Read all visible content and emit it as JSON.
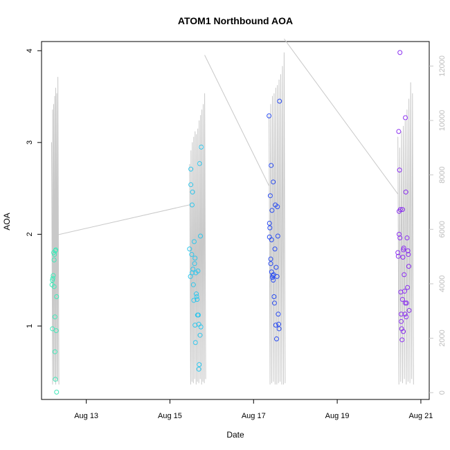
{
  "chart_data": {
    "type": "scatter",
    "title": "ATOM1 Northbound AOA",
    "xlabel": "Date",
    "ylabel": "AOA",
    "x_ticks": [
      "Aug 13",
      "Aug 15",
      "Aug 17",
      "Aug 19",
      "Aug 21"
    ],
    "x_tick_values": [
      13,
      15,
      17,
      19,
      21
    ],
    "xlim": [
      11.93,
      21.2
    ],
    "y_ticks": [
      "1",
      "2",
      "3",
      "4"
    ],
    "y_tick_values": [
      1,
      2,
      3,
      4
    ],
    "ylim": [
      0.2,
      4.1
    ],
    "y2_ticks": [
      "0",
      "2000",
      "4000",
      "6000",
      "8000",
      "10000",
      "12000"
    ],
    "y2_tick_values": [
      0,
      2000,
      4000,
      6000,
      8000,
      10000,
      12000
    ],
    "y2lim": [
      -250,
      12900
    ],
    "y2_color": "#c8c8c8",
    "line_color": "#c8c8c8",
    "point_colors": [
      "#3fe8b8",
      "#2ec6ec",
      "#2a4cf0",
      "#8a2ef0"
    ],
    "bursts": [
      {
        "day_start": 12.17,
        "day_end": 12.32,
        "color": "#3fe8b8",
        "points": [
          [
            12.18,
            1.45
          ],
          [
            12.19,
            1.5
          ],
          [
            12.2,
            1.52
          ],
          [
            12.19,
            0.97
          ],
          [
            12.21,
            1.55
          ],
          [
            12.22,
            1.8
          ],
          [
            12.23,
            1.43
          ],
          [
            12.23,
            1.72
          ],
          [
            12.24,
            1.78
          ],
          [
            12.25,
            1.1
          ],
          [
            12.25,
            0.72
          ],
          [
            12.26,
            1.82
          ],
          [
            12.26,
            0.42
          ],
          [
            12.27,
            1.83
          ],
          [
            12.28,
            0.95
          ],
          [
            12.29,
            1.32
          ],
          [
            12.29,
            0.28
          ]
        ],
        "line_peaks": [
          9200,
          10400,
          10600,
          10900,
          11200,
          11000,
          11600
        ],
        "line_mins": [
          300,
          500,
          400
        ]
      },
      {
        "day_start": 15.47,
        "day_end": 15.83,
        "color": "#2ec6ec",
        "points": [
          [
            15.47,
            1.84
          ],
          [
            15.49,
            1.54
          ],
          [
            15.5,
            2.71
          ],
          [
            15.5,
            2.54
          ],
          [
            15.52,
            1.78
          ],
          [
            15.53,
            1.58
          ],
          [
            15.53,
            2.32
          ],
          [
            15.54,
            2.46
          ],
          [
            15.55,
            1.62
          ],
          [
            15.56,
            1.45
          ],
          [
            15.57,
            1.28
          ],
          [
            15.58,
            1.92
          ],
          [
            15.59,
            1.68
          ],
          [
            15.6,
            1.74
          ],
          [
            15.6,
            1.01
          ],
          [
            15.61,
            0.82
          ],
          [
            15.62,
            1.58
          ],
          [
            15.63,
            1.35
          ],
          [
            15.64,
            1.32
          ],
          [
            15.65,
            1.29
          ],
          [
            15.66,
            1.12
          ],
          [
            15.67,
            1.6
          ],
          [
            15.68,
            1.12
          ],
          [
            15.69,
            1.02
          ],
          [
            15.69,
            0.53
          ],
          [
            15.7,
            0.58
          ],
          [
            15.71,
            2.77
          ],
          [
            15.72,
            0.9
          ],
          [
            15.73,
            1.98
          ],
          [
            15.74,
            0.99
          ],
          [
            15.75,
            2.95
          ]
        ],
        "line_peaks": [
          8400,
          8900,
          9200,
          9400,
          9600,
          9500,
          9700,
          10000,
          10200,
          10400,
          10600,
          11000
        ],
        "line_mins": [
          300,
          400,
          350,
          500
        ]
      },
      {
        "day_start": 17.37,
        "day_end": 17.73,
        "color": "#2a4cf0",
        "points": [
          [
            17.37,
            3.29
          ],
          [
            17.38,
            2.12
          ],
          [
            17.38,
            1.97
          ],
          [
            17.39,
            2.07
          ],
          [
            17.4,
            2.42
          ],
          [
            17.41,
            1.73
          ],
          [
            17.41,
            1.68
          ],
          [
            17.42,
            2.75
          ],
          [
            17.43,
            1.59
          ],
          [
            17.43,
            1.94
          ],
          [
            17.44,
            2.26
          ],
          [
            17.45,
            1.53
          ],
          [
            17.46,
            1.55
          ],
          [
            17.47,
            2.57
          ],
          [
            17.47,
            1.5
          ],
          [
            17.48,
            1.56
          ],
          [
            17.49,
            1.32
          ],
          [
            17.5,
            1.25
          ],
          [
            17.51,
            1.84
          ],
          [
            17.52,
            2.32
          ],
          [
            17.53,
            1.01
          ],
          [
            17.54,
            1.64
          ],
          [
            17.55,
            0.86
          ],
          [
            17.56,
            1.54
          ],
          [
            17.57,
            2.3
          ],
          [
            17.58,
            1.98
          ],
          [
            17.59,
            1.13
          ],
          [
            17.6,
            1.02
          ],
          [
            17.61,
            0.97
          ],
          [
            17.62,
            3.45
          ]
        ],
        "line_peaks": [
          10200,
          10600,
          10900,
          11000,
          11200,
          11300,
          11500,
          11700,
          12000,
          12500
        ],
        "line_mins": [
          300,
          350,
          400,
          300
        ]
      },
      {
        "day_start": 20.45,
        "day_end": 20.8,
        "color": "#8a2ef0",
        "points": [
          [
            20.45,
            1.8
          ],
          [
            20.46,
            1.76
          ],
          [
            20.47,
            3.12
          ],
          [
            20.48,
            2.25
          ],
          [
            20.48,
            2.0
          ],
          [
            20.49,
            2.7
          ],
          [
            20.5,
            3.98
          ],
          [
            20.5,
            1.96
          ],
          [
            20.51,
            2.27
          ],
          [
            20.52,
            1.37
          ],
          [
            20.53,
            1.13
          ],
          [
            20.53,
            1.05
          ],
          [
            20.54,
            0.97
          ],
          [
            20.55,
            0.85
          ],
          [
            20.56,
            2.27
          ],
          [
            20.56,
            1.29
          ],
          [
            20.57,
            1.75
          ],
          [
            20.58,
            1.83
          ],
          [
            20.58,
            0.94
          ],
          [
            20.59,
            1.85
          ],
          [
            20.6,
            1.56
          ],
          [
            20.61,
            1.38
          ],
          [
            20.62,
            1.13
          ],
          [
            20.63,
            1.25
          ],
          [
            20.63,
            3.27
          ],
          [
            20.64,
            2.46
          ],
          [
            20.65,
            1.1
          ],
          [
            20.66,
            1.25
          ],
          [
            20.67,
            1.96
          ],
          [
            20.68,
            1.42
          ],
          [
            20.69,
            1.82
          ],
          [
            20.7,
            1.78
          ],
          [
            20.71,
            1.65
          ],
          [
            20.72,
            1.17
          ]
        ],
        "line_peaks": [
          9400,
          9000,
          9600,
          9800,
          10000,
          10400,
          10800,
          11400,
          11000
        ],
        "line_mins": [
          300,
          400,
          350,
          500
        ]
      }
    ],
    "connectors": [
      {
        "from": [
          12.32,
          5800
        ],
        "to": [
          15.47,
          6900
        ]
      },
      {
        "from": [
          15.83,
          12400
        ],
        "to": [
          17.37,
          7600
        ]
      },
      {
        "from": [
          17.73,
          13000
        ],
        "to": [
          20.45,
          7300
        ]
      }
    ]
  }
}
